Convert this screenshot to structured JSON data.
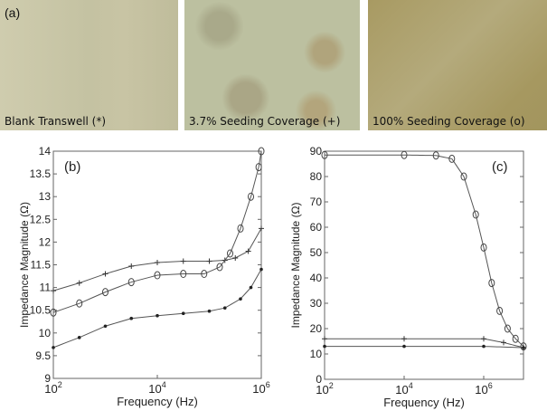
{
  "panel_a": {
    "label": "(a)",
    "images": [
      {
        "caption": "Blank Transwell (*)",
        "color": "#c9c6a6"
      },
      {
        "caption": "3.7% Seeding Coverage (+)",
        "color": "#b8bd9c"
      },
      {
        "caption": "100% Seeding Coverage (o)",
        "color": "#aea270"
      }
    ]
  },
  "chart_data": [
    {
      "type": "line",
      "panel_label": "(b)",
      "xlabel": "Frequency (Hz)",
      "ylabel": "Impedance Magnitude (Ω)",
      "xscale": "log",
      "xlim": [
        100,
        1000000
      ],
      "ylim": [
        9,
        14
      ],
      "xticks": [
        "10^2",
        "10^4",
        "10^6"
      ],
      "yticks": [
        "9",
        "9.5",
        "10",
        "10.5",
        "11",
        "11.5",
        "12",
        "12.5",
        "13",
        "13.5",
        "14"
      ],
      "series": [
        {
          "marker": "+",
          "x": [
            100,
            316,
            1000,
            3162,
            10000,
            31623,
            100000,
            199526,
            316228,
            562341,
            1000000
          ],
          "y": [
            10.93,
            11.1,
            11.3,
            11.47,
            11.55,
            11.58,
            11.58,
            11.6,
            11.65,
            11.8,
            12.3
          ]
        },
        {
          "marker": "o",
          "x": [
            100,
            316,
            1000,
            3162,
            10000,
            31623,
            79433,
            158489,
            251189,
            398107,
            630957,
            891251,
            1000000
          ],
          "y": [
            10.45,
            10.65,
            10.9,
            11.12,
            11.27,
            11.3,
            11.3,
            11.45,
            11.75,
            12.3,
            13.0,
            13.65,
            14.0
          ]
        },
        {
          "marker": "*",
          "x": [
            100,
            316,
            1000,
            3162,
            10000,
            31623,
            100000,
            199526,
            398107,
            630957,
            1000000
          ],
          "y": [
            9.68,
            9.9,
            10.15,
            10.32,
            10.38,
            10.43,
            10.48,
            10.55,
            10.75,
            11.0,
            11.4
          ]
        }
      ]
    },
    {
      "type": "line",
      "panel_label": "(c)",
      "xlabel": "Frequency (Hz)",
      "ylabel": "Impedance Magnitude (Ω)",
      "xscale": "log",
      "xlim": [
        100,
        10000000
      ],
      "ylim": [
        0,
        90
      ],
      "xticks": [
        "10^2",
        "10^4",
        "10^6"
      ],
      "yticks": [
        "0",
        "10",
        "20",
        "30",
        "40",
        "50",
        "60",
        "70",
        "80",
        "90"
      ],
      "series": [
        {
          "marker": "o",
          "x": [
            100,
            10000,
            63096,
            158489,
            316228,
            630957,
            1000000,
            1584893,
            2511886,
            3981072,
            6309573,
            10000000
          ],
          "y": [
            88.5,
            88.5,
            88.3,
            87,
            80,
            65,
            52,
            38,
            27,
            20,
            16,
            13
          ]
        },
        {
          "marker": "+",
          "x": [
            100,
            10000,
            1000000,
            3162278,
            10000000
          ],
          "y": [
            16,
            16,
            16,
            14.5,
            12.5
          ]
        },
        {
          "marker": "*",
          "x": [
            100,
            10000,
            1000000,
            10000000
          ],
          "y": [
            13,
            13,
            13,
            12.5
          ]
        }
      ]
    }
  ]
}
